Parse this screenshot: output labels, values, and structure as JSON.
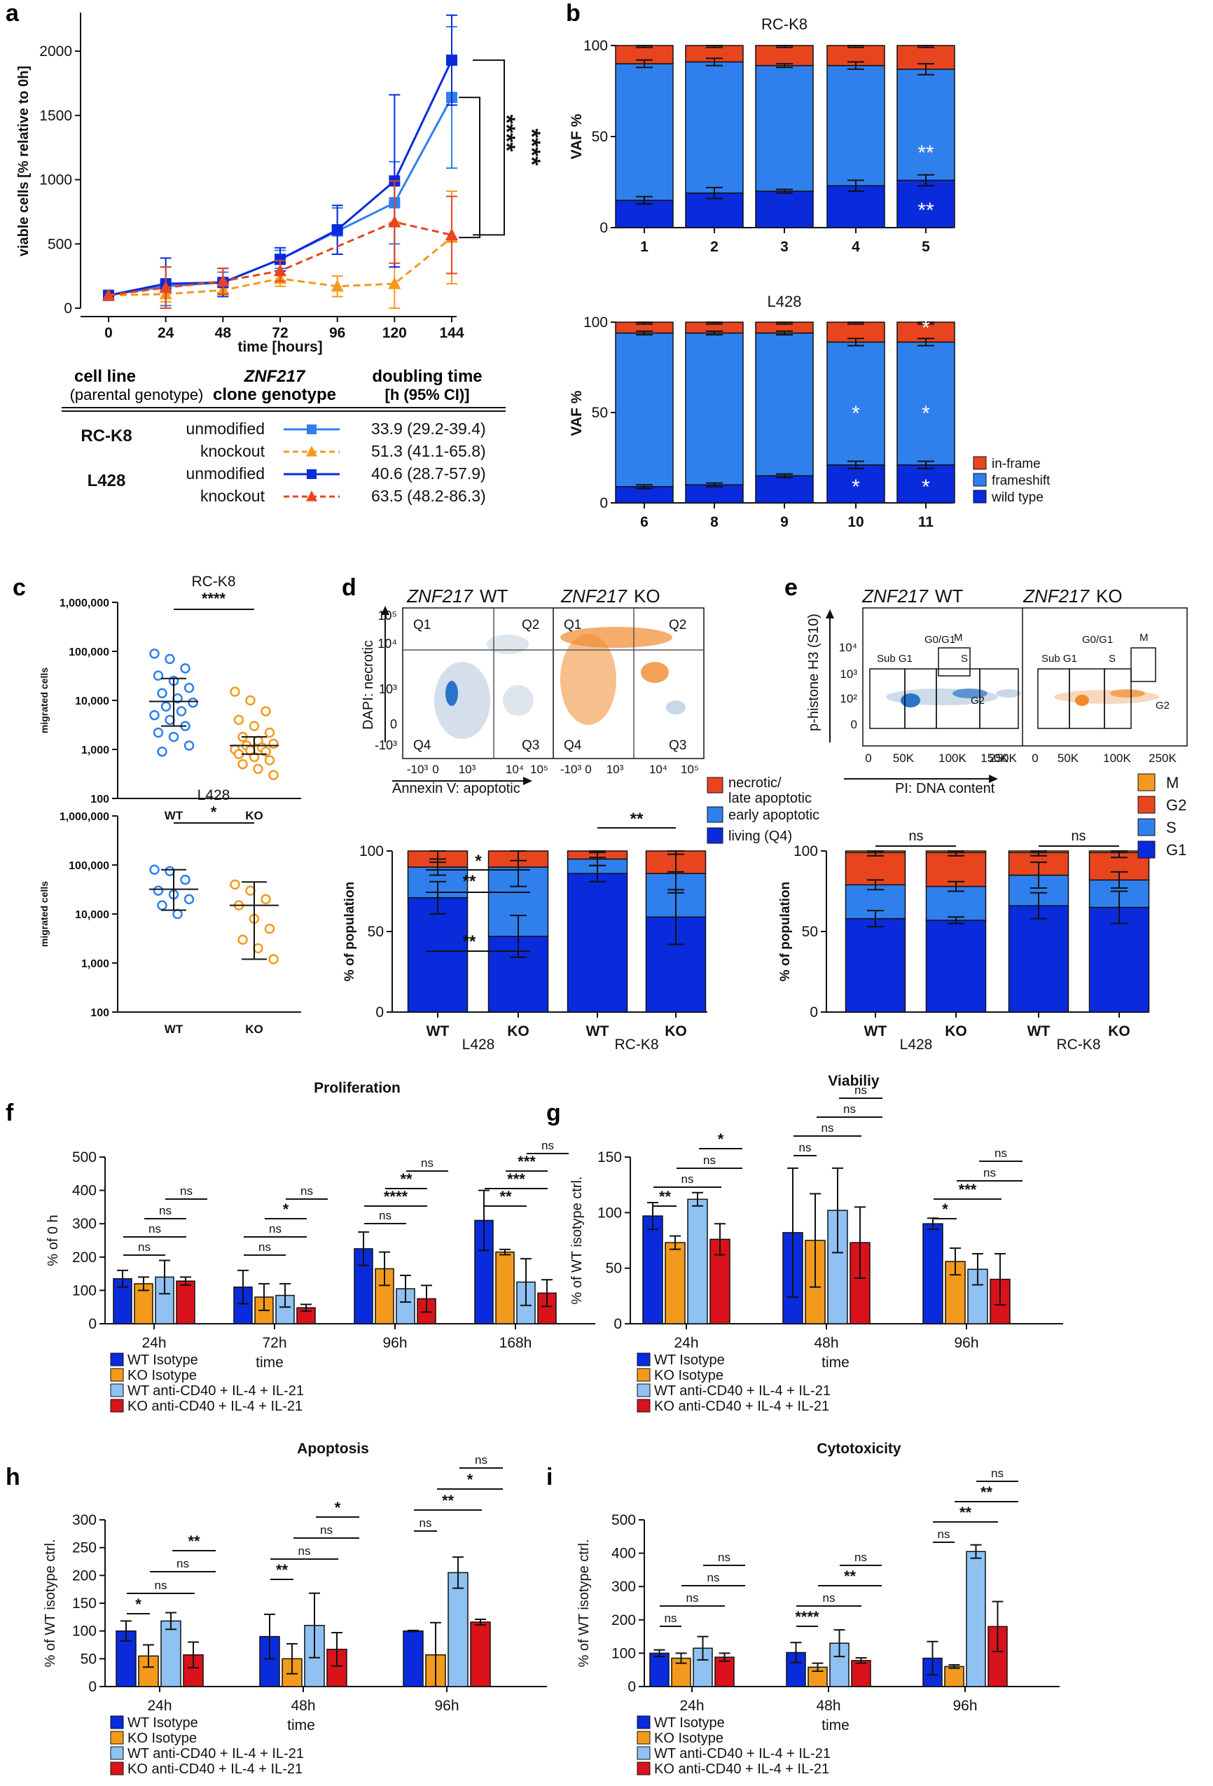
{
  "colors": {
    "dark_blue": "#0a2bdc",
    "mid_blue": "#2f80ed",
    "light_blue": "#8fc1f2",
    "orange": "#f39a1c",
    "red": "#e8451e",
    "dark_red": "#d9121b",
    "flow_blue": "#2a74c9",
    "flow_orange": "#f08a2c"
  },
  "panel_letters": [
    "a",
    "b",
    "c",
    "d",
    "e",
    "f",
    "g",
    "h",
    "i"
  ],
  "chart_data": [
    {
      "id": "a",
      "type": "line",
      "xlabel": "time [hours]",
      "ylabel": "viable cells [% relative to 0h]",
      "x": [
        0,
        24,
        48,
        72,
        96,
        120,
        144
      ],
      "x_tick_labels": [
        "0",
        "24",
        "48",
        "72",
        "96",
        "120",
        "144"
      ],
      "ylim": [
        0,
        2300
      ],
      "y_ticks": [
        0,
        500,
        1000,
        1500,
        2000
      ],
      "series": [
        {
          "name": "RC-K8 unmodified",
          "color": "#2f80ed",
          "marker": "square",
          "dash": false,
          "values": [
            100,
            170,
            200,
            380,
            600,
            820,
            1640
          ],
          "err": [
            0,
            150,
            80,
            70,
            180,
            320,
            550
          ]
        },
        {
          "name": "RC-K8 knockout",
          "color": "#f39a1c",
          "marker": "triangle",
          "dash": true,
          "values": [
            100,
            110,
            140,
            230,
            170,
            190,
            550
          ],
          "err": [
            0,
            60,
            50,
            60,
            80,
            480,
            360
          ]
        },
        {
          "name": "L428 unmodified",
          "color": "#0a2bdc",
          "marker": "square",
          "dash": false,
          "values": [
            100,
            190,
            200,
            380,
            610,
            990,
            1930
          ],
          "err": [
            0,
            200,
            110,
            90,
            190,
            670,
            350
          ]
        },
        {
          "name": "L428 knockout",
          "color": "#e8451e",
          "marker": "triangle",
          "dash": true,
          "values": [
            100,
            160,
            210,
            290,
            null,
            670,
            570
          ],
          "err": [
            0,
            160,
            100,
            80,
            0,
            320,
            300
          ]
        }
      ],
      "annotations": [
        "****",
        "****"
      ]
    },
    {
      "id": "b-top",
      "type": "bar",
      "title": "RC-K8",
      "ylabel": "VAF %",
      "categories": [
        "1",
        "2",
        "3",
        "4",
        "5"
      ],
      "ylim": [
        0,
        100
      ],
      "y_ticks": [
        0,
        50,
        100
      ],
      "series": [
        {
          "name": "wild type",
          "color": "#0a2bdc",
          "values": [
            15,
            19,
            20,
            23,
            26
          ]
        },
        {
          "name": "frameshift",
          "color": "#2f80ed",
          "values": [
            75,
            72,
            69,
            66,
            61
          ]
        },
        {
          "name": "in-frame",
          "color": "#e8451e",
          "values": [
            10,
            9,
            11,
            11,
            13
          ]
        }
      ],
      "stars": [
        "**",
        "**"
      ]
    },
    {
      "id": "b-bottom",
      "type": "bar",
      "title": "L428",
      "ylabel": "VAF %",
      "categories": [
        "6",
        "8",
        "9",
        "10",
        "11"
      ],
      "ylim": [
        0,
        100
      ],
      "y_ticks": [
        0,
        50,
        100
      ],
      "series": [
        {
          "name": "wild type",
          "color": "#0a2bdc",
          "values": [
            9,
            10,
            15,
            21,
            21
          ]
        },
        {
          "name": "frameshift",
          "color": "#2f80ed",
          "values": [
            85,
            84,
            79,
            68,
            68
          ]
        },
        {
          "name": "in-frame",
          "color": "#e8451e",
          "values": [
            6,
            6,
            6,
            11,
            11
          ]
        }
      ],
      "legend": [
        "in-frame",
        "frameshift",
        "wild type"
      ],
      "stars": [
        "*",
        "*",
        "*",
        "*",
        "*"
      ]
    },
    {
      "id": "c-top",
      "type": "scatter",
      "title": "RC-K8",
      "ylabel": "migrated cells",
      "categories": [
        "WT",
        "KO"
      ],
      "y_tick_labels": [
        "100",
        "1,000",
        "10,000",
        "100,000",
        "1,000,000"
      ],
      "y_scale": "log",
      "significance": "****",
      "WT": [
        90000,
        70000,
        45000,
        32000,
        25000,
        18000,
        14000,
        11000,
        9000,
        7500,
        6000,
        5000,
        4000,
        3000,
        2200,
        1800,
        1200,
        900
      ],
      "KO": [
        15000,
        10000,
        6000,
        4000,
        3000,
        2200,
        1800,
        1500,
        1300,
        1200,
        1100,
        1000,
        950,
        900,
        800,
        700,
        600,
        500,
        400,
        300
      ],
      "WT_mean": 9500,
      "WT_sd": [
        3000,
        28000
      ],
      "KO_mean": 1200,
      "KO_sd": [
        800,
        1800
      ]
    },
    {
      "id": "c-bottom",
      "type": "scatter",
      "title": "L428",
      "ylabel": "migrated cells",
      "categories": [
        "WT",
        "KO"
      ],
      "y_tick_labels": [
        "100",
        "1,000",
        "10,000",
        "100,000",
        "1,000,000"
      ],
      "y_scale": "log",
      "significance": "*",
      "WT": [
        80000,
        75000,
        50000,
        30000,
        25000,
        20000,
        15000,
        10000
      ],
      "KO": [
        40000,
        30000,
        20000,
        15000,
        8000,
        5000,
        3000,
        2000,
        1200
      ],
      "WT_mean": 32000,
      "WT_sd": [
        12000,
        80000
      ],
      "KO_mean": 15000,
      "KO_sd": [
        1200,
        45000
      ]
    },
    {
      "id": "d",
      "type": "bar",
      "ylabel": "% of population",
      "categories": [
        "WT",
        "KO",
        "WT",
        "KO"
      ],
      "groups": [
        "L428",
        "RC-K8"
      ],
      "ylim": [
        0,
        100
      ],
      "y_ticks": [
        0,
        50,
        100
      ],
      "series": [
        {
          "name": "living (Q4)",
          "color": "#0a2bdc",
          "values": [
            71,
            47,
            86,
            59
          ]
        },
        {
          "name": "early apoptotic",
          "color": "#2f80ed",
          "values": [
            19,
            43,
            9,
            27
          ]
        },
        {
          "name": "necrotic/ late apoptotic",
          "color": "#e8451e",
          "values": [
            10,
            10,
            5,
            14
          ]
        }
      ],
      "legend": [
        "necrotic/ late apoptotic",
        "early apoptotic",
        "living (Q4)"
      ],
      "stars": [
        "*",
        "**",
        "**",
        "**"
      ]
    },
    {
      "id": "e",
      "type": "bar",
      "ylabel": "% of population",
      "categories": [
        "WT",
        "KO",
        "WT",
        "KO"
      ],
      "groups": [
        "L428",
        "RC-K8"
      ],
      "ylim": [
        0,
        100
      ],
      "y_ticks": [
        0,
        50,
        100
      ],
      "series": [
        {
          "name": "G1",
          "color": "#0a2bdc",
          "values": [
            58,
            57,
            66,
            65
          ]
        },
        {
          "name": "S",
          "color": "#2f80ed",
          "values": [
            21,
            21,
            19,
            17
          ]
        },
        {
          "name": "G2",
          "color": "#e8451e",
          "values": [
            20,
            21,
            14,
            17
          ]
        },
        {
          "name": "M",
          "color": "#f39a1c",
          "values": [
            1,
            1,
            1,
            1
          ]
        }
      ],
      "legend": [
        "M",
        "G2",
        "S",
        "G1"
      ],
      "stars": [
        "ns",
        "ns"
      ]
    },
    {
      "id": "f",
      "type": "bar",
      "title": "Proliferation",
      "ylabel": "% of 0 h",
      "xlabel": "time",
      "categories": [
        "24h",
        "72h",
        "96h",
        "168h"
      ],
      "ylim": [
        0,
        500
      ],
      "y_ticks": [
        0,
        100,
        200,
        300,
        400,
        500
      ],
      "series": [
        {
          "name": "WT Isotype",
          "color": "#0a2bdc",
          "values": [
            135,
            110,
            225,
            310
          ],
          "err": [
            25,
            50,
            50,
            90
          ]
        },
        {
          "name": "KO Isotype",
          "color": "#f39a1c",
          "values": [
            120,
            80,
            165,
            215
          ],
          "err": [
            20,
            40,
            50,
            8
          ]
        },
        {
          "name": "WT anti-CD40 + IL-4 + IL-21",
          "color": "#8fc1f2",
          "values": [
            140,
            85,
            105,
            125
          ],
          "err": [
            50,
            35,
            40,
            70
          ]
        },
        {
          "name": "KO anti-CD40 + IL-4 + IL-21",
          "color": "#d9121b",
          "values": [
            128,
            48,
            75,
            92
          ],
          "err": [
            12,
            10,
            40,
            40
          ]
        }
      ],
      "brackets": [
        "ns",
        "ns",
        "ns",
        "ns",
        "ns",
        "ns",
        "*",
        "ns",
        "ns",
        "****",
        "**",
        "ns",
        "**",
        "***",
        "***",
        "ns"
      ]
    },
    {
      "id": "g",
      "type": "bar",
      "title": "Viabiliy",
      "ylabel": "% of WT isotype ctrl.",
      "xlabel": "time",
      "categories": [
        "24h",
        "48h",
        "96h"
      ],
      "ylim": [
        0,
        150
      ],
      "y_ticks": [
        0,
        50,
        100,
        150
      ],
      "series": [
        {
          "name": "WT Isotype",
          "color": "#0a2bdc",
          "values": [
            97,
            82,
            90
          ],
          "err": [
            12,
            58,
            5
          ]
        },
        {
          "name": "KO Isotype",
          "color": "#f39a1c",
          "values": [
            73,
            75,
            56
          ],
          "err": [
            6,
            42,
            12
          ]
        },
        {
          "name": "WT anti-CD40 + IL-4 + IL-21",
          "color": "#8fc1f2",
          "values": [
            112,
            102,
            49
          ],
          "err": [
            6,
            38,
            14
          ]
        },
        {
          "name": "KO anti-CD40 + IL-4 + IL-21",
          "color": "#d9121b",
          "values": [
            76,
            73,
            40
          ],
          "err": [
            14,
            32,
            23
          ]
        }
      ],
      "brackets": [
        "**",
        "ns",
        "ns",
        "*",
        "ns",
        "ns",
        "ns",
        "ns",
        "*",
        "***",
        "ns",
        "ns"
      ]
    },
    {
      "id": "h",
      "type": "bar",
      "title": "Apoptosis",
      "ylabel": "% of WT isotype ctrl.",
      "xlabel": "time",
      "categories": [
        "24h",
        "48h",
        "96h"
      ],
      "ylim": [
        0,
        300
      ],
      "y_ticks": [
        0,
        50,
        100,
        150,
        200,
        250,
        300
      ],
      "series": [
        {
          "name": "WT Isotype",
          "color": "#0a2bdc",
          "values": [
            100,
            90,
            100
          ],
          "err": [
            18,
            40,
            1
          ]
        },
        {
          "name": "KO Isotype",
          "color": "#f39a1c",
          "values": [
            55,
            50,
            57
          ],
          "err": [
            20,
            27,
            58
          ]
        },
        {
          "name": "WT anti-CD40 + IL-4 + IL-21",
          "color": "#8fc1f2",
          "values": [
            118,
            110,
            205
          ],
          "err": [
            15,
            58,
            28
          ]
        },
        {
          "name": "KO anti-CD40 + IL-4 + IL-21",
          "color": "#d9121b",
          "values": [
            57,
            67,
            116
          ],
          "err": [
            23,
            30,
            5
          ]
        }
      ],
      "brackets": [
        "*",
        "ns",
        "ns",
        "**",
        "**",
        "ns",
        "ns",
        "*",
        "ns",
        "**",
        "*",
        "ns"
      ]
    },
    {
      "id": "i",
      "type": "bar",
      "title": "Cytotoxicity",
      "ylabel": "% of WT isotype ctrl.",
      "xlabel": "time",
      "categories": [
        "24h",
        "48h",
        "96h"
      ],
      "ylim": [
        0,
        500
      ],
      "y_ticks": [
        0,
        100,
        200,
        300,
        400,
        500
      ],
      "series": [
        {
          "name": "WT Isotype",
          "color": "#0a2bdc",
          "values": [
            100,
            102,
            85
          ],
          "err": [
            10,
            30,
            50
          ]
        },
        {
          "name": "KO Isotype",
          "color": "#f39a1c",
          "values": [
            85,
            58,
            60
          ],
          "err": [
            15,
            12,
            5
          ]
        },
        {
          "name": "WT anti-CD40 + IL-4 + IL-21",
          "color": "#8fc1f2",
          "values": [
            115,
            130,
            405
          ],
          "err": [
            35,
            40,
            20
          ]
        },
        {
          "name": "KO anti-CD40 + IL-4 + IL-21",
          "color": "#d9121b",
          "values": [
            88,
            78,
            180
          ],
          "err": [
            12,
            8,
            75
          ]
        }
      ],
      "brackets": [
        "ns",
        "ns",
        "ns",
        "ns",
        "****",
        "ns",
        "**",
        "ns",
        "ns",
        "**",
        "**",
        "ns"
      ]
    }
  ],
  "table_a": {
    "headers": [
      "cell line",
      "(parental genotype)",
      "ZNF217",
      "clone genotype",
      "doubling time",
      "[h (95% CI)]"
    ],
    "rows": [
      {
        "line": "RC-K8",
        "genotype": "unmodified",
        "time": "33.9 (29.2-39.4)",
        "color": "#2f80ed",
        "marker": "square",
        "dash": false
      },
      {
        "line": "",
        "genotype": "knockout",
        "time": "51.3 (41.1-65.8)",
        "color": "#f39a1c",
        "marker": "triangle",
        "dash": true
      },
      {
        "line": "L428",
        "genotype": "unmodified",
        "time": "40.6 (28.7-57.9)",
        "color": "#0a2bdc",
        "marker": "square",
        "dash": false
      },
      {
        "line": "",
        "genotype": "knockout",
        "time": "63.5 (48.2-86.3)",
        "color": "#e8451e",
        "marker": "triangle",
        "dash": true
      }
    ]
  },
  "flow_d": {
    "title_wt": "WT",
    "title_ko": "KO",
    "gene": "ZNF217",
    "ylabel": "DAPI: necrotic",
    "xlabel": "Annexin V: apoptotic",
    "quadrants": [
      "Q1",
      "Q2",
      "Q3",
      "Q4"
    ],
    "y_ticks": [
      "10⁵",
      "10⁴",
      "10³",
      "0",
      "-10³"
    ],
    "x_ticks": [
      "-10³",
      "0",
      "10³",
      "10⁴",
      "10⁵"
    ]
  },
  "flow_e": {
    "title_wt": "WT",
    "title_ko": "KO",
    "gene": "ZNF217",
    "ylabel": "p-histone H3 (S10)",
    "xlabel": "PI: DNA content",
    "gates": [
      "Sub G1",
      "G0/G1",
      "S",
      "M",
      "G2"
    ],
    "y_ticks": [
      "10⁴",
      "10³",
      "10²",
      "0"
    ],
    "x_ticks": [
      "0",
      "50K",
      "100K",
      "150K",
      "250K"
    ]
  },
  "group_labels": {
    "l428": "L428",
    "rck8": "RC-K8"
  },
  "time_label": "time"
}
